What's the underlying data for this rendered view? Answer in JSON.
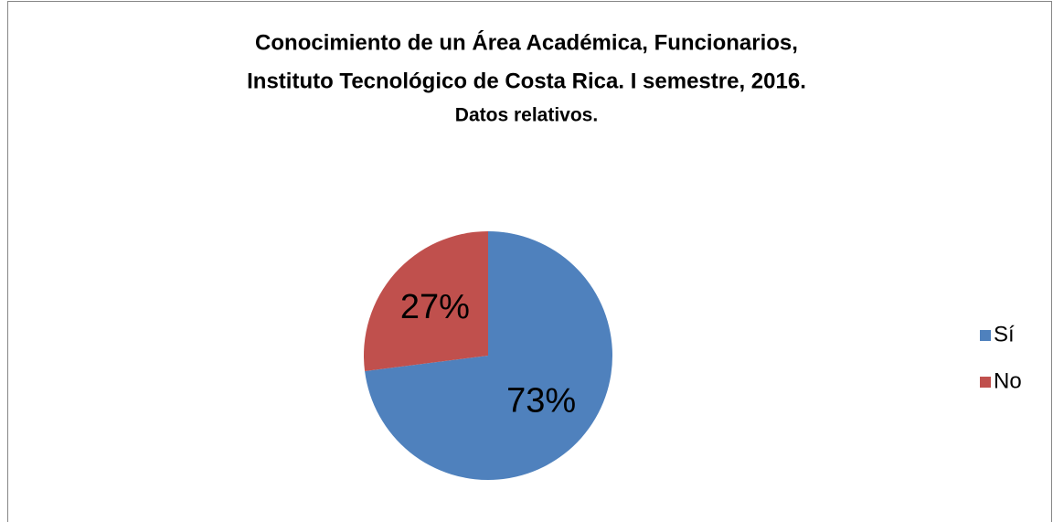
{
  "chart_data": {
    "type": "pie",
    "title": [
      "Conocimiento de un Área Académica, Funcionarios,",
      "Instituto Tecnológico de Costa Rica. I semestre, 2016."
    ],
    "subtitle": "Datos relativos.",
    "categories": [
      "Sí",
      "No"
    ],
    "values": [
      73,
      27
    ],
    "value_labels": [
      "73%",
      "27%"
    ],
    "colors": [
      "#4f81bd",
      "#c0504d"
    ],
    "legend": "right"
  }
}
